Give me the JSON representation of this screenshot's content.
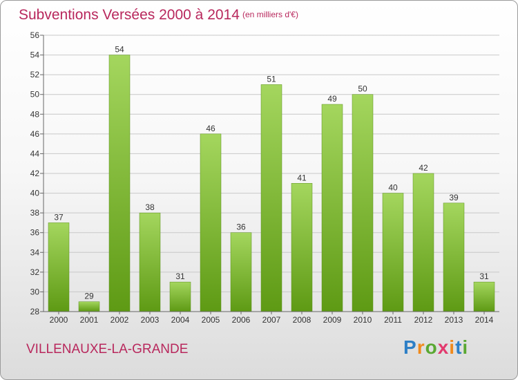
{
  "header": {
    "title": "Subventions Versées 2000 à 2014",
    "subtitle": "(en milliers d'€)"
  },
  "footer": {
    "commune": "VILLENAUXE-LA-GRANDE",
    "logo": "Proxiti"
  },
  "colors": {
    "bar_light": "#a4d65e",
    "bar_dark": "#5e9a14",
    "title": "#b8275c"
  },
  "chart_data": {
    "type": "bar",
    "title": "Subventions Versées 2000 à 2014",
    "subtitle": "(en milliers d'€)",
    "categories": [
      "2000",
      "2001",
      "2002",
      "2003",
      "2004",
      "2005",
      "2006",
      "2007",
      "2008",
      "2009",
      "2010",
      "2011",
      "2012",
      "2013",
      "2014"
    ],
    "values": [
      37,
      29,
      54,
      38,
      31,
      46,
      36,
      51,
      41,
      49,
      50,
      40,
      42,
      39,
      31
    ],
    "ylim": [
      28,
      56
    ],
    "yticks": [
      28,
      30,
      32,
      34,
      36,
      38,
      40,
      42,
      44,
      46,
      48,
      50,
      52,
      54,
      56
    ],
    "grid": true,
    "data_labels": true
  }
}
